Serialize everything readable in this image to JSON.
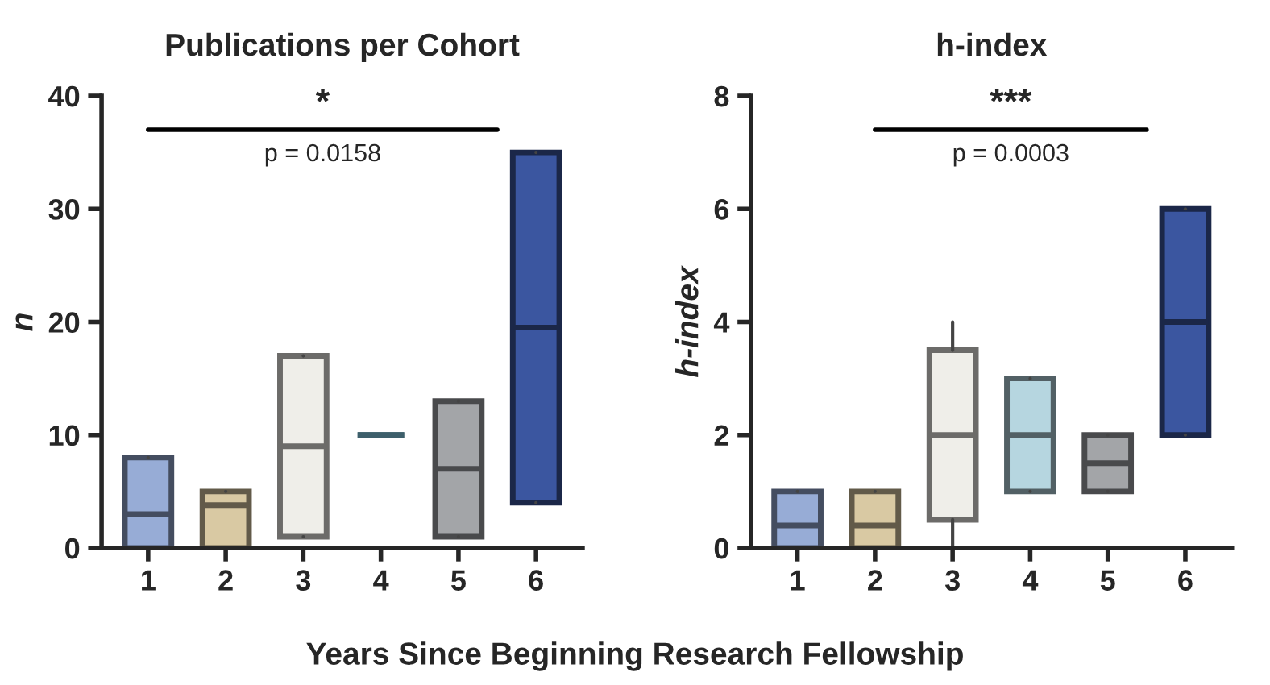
{
  "chart_data": [
    {
      "type": "box",
      "title": "Publications per Cohort",
      "ylabel": "n",
      "xlabel": "Years Since Beginning Research Fellowship",
      "categories": [
        "1",
        "2",
        "3",
        "4",
        "5",
        "6"
      ],
      "boxes": [
        {
          "low": 0,
          "q1": 0,
          "median": 3,
          "q3": 8,
          "high": 8
        },
        {
          "low": 0,
          "q1": 0,
          "median": 3.8,
          "q3": 5,
          "high": 5
        },
        {
          "low": 1,
          "q1": 1,
          "median": 9,
          "q3": 17,
          "high": 17
        },
        {
          "low": 10,
          "q1": 10,
          "median": 10,
          "q3": 10,
          "high": 10
        },
        {
          "low": 1,
          "q1": 1,
          "median": 7,
          "q3": 13,
          "high": 13
        },
        {
          "low": 4,
          "q1": 4,
          "median": 19.5,
          "q3": 35,
          "high": 35
        }
      ],
      "colors": [
        "#97acd6",
        "#d9c9a3",
        "#efeee9",
        "#3d5f6b",
        "#a3a5a8",
        "#3b56a0"
      ],
      "ylim": [
        0,
        40
      ],
      "yticks": [
        0,
        10,
        20,
        30,
        40
      ],
      "grid": false,
      "annotations": [
        "*",
        "p = 0.0158"
      ]
    },
    {
      "type": "box",
      "title": "h-index",
      "ylabel": "h-index",
      "categories": [
        "1",
        "2",
        "3",
        "4",
        "5",
        "6"
      ],
      "boxes": [
        {
          "low": 0,
          "q1": 0,
          "median": 0.4,
          "q3": 1,
          "high": 1
        },
        {
          "low": 0,
          "q1": 0,
          "median": 0.4,
          "q3": 1,
          "high": 1
        },
        {
          "low": 0,
          "q1": 0.5,
          "median": 2,
          "q3": 3.5,
          "high": 4
        },
        {
          "low": 1,
          "q1": 1,
          "median": 2,
          "q3": 3,
          "high": 3
        },
        {
          "low": 1,
          "q1": 1,
          "median": 1.5,
          "q3": 2,
          "high": 2
        },
        {
          "low": 2,
          "q1": 2,
          "median": 4,
          "q3": 6,
          "high": 6
        }
      ],
      "colors": [
        "#97acd6",
        "#d9c9a3",
        "#efeee9",
        "#b6d6e0",
        "#a3a5a8",
        "#3b56a0"
      ],
      "ylim": [
        0,
        8
      ],
      "yticks": [
        0,
        2,
        4,
        6,
        8
      ],
      "grid": false,
      "annotations": [
        "***",
        "p = 0.0003"
      ]
    }
  ]
}
